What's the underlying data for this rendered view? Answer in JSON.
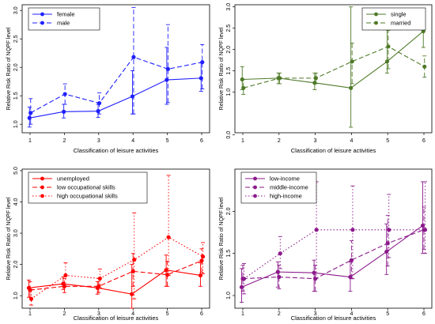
{
  "chart_data": [
    {
      "type": "line",
      "color": "#1f1fff",
      "xlabel": "Classification of leisure activities",
      "ylabel": "Relative Risk Ratio of NQPF level",
      "x": [
        1,
        2,
        3,
        4,
        5,
        6
      ],
      "ylim": [
        0.85,
        3.1
      ],
      "yticks": [
        "1.0",
        "1.5",
        "2.0",
        "2.5",
        "3.0"
      ],
      "ytick_values": [
        1.0,
        1.5,
        2.0,
        2.5,
        3.0
      ],
      "legend_position": "top-left",
      "series": [
        {
          "name": "female",
          "style": "solid",
          "values": [
            1.11,
            1.22,
            1.23,
            1.49,
            1.78,
            1.81
          ],
          "ci_low": [
            0.95,
            1.11,
            1.12,
            1.18,
            1.35,
            1.58
          ],
          "ci_high": [
            1.3,
            1.35,
            1.35,
            1.94,
            2.35,
            2.08
          ]
        },
        {
          "name": "male",
          "style": "dash",
          "values": [
            1.2,
            1.53,
            1.37,
            2.18,
            1.97,
            2.09
          ],
          "ci_low": [
            1.0,
            1.35,
            1.18,
            1.18,
            1.38,
            1.62
          ],
          "ci_high": [
            1.45,
            1.71,
            1.55,
            3.05,
            2.75,
            2.4
          ]
        }
      ]
    },
    {
      "type": "line",
      "color": "#4e7a27",
      "xlabel": "Classification of leisure activities",
      "ylabel": "Relative Risk Ratio of NQPF level",
      "x": [
        1,
        2,
        3,
        4,
        5,
        6
      ],
      "ylim": [
        0.05,
        3.05
      ],
      "yticks": [
        "0.0",
        "1.0",
        "1.5",
        "2.0",
        "2.5",
        "3.0"
      ],
      "ytick_values": [
        0.0,
        1.0,
        1.5,
        2.0,
        2.5,
        3.0
      ],
      "legend_position": "top-right",
      "series": [
        {
          "name": "single",
          "style": "solid",
          "values": [
            1.3,
            1.33,
            1.22,
            1.1,
            1.72,
            2.43
          ],
          "ci_low": [
            1.06,
            1.2,
            1.06,
            0.18,
            1.45,
            2.05
          ],
          "ci_high": [
            1.6,
            1.45,
            1.45,
            3.0,
            2.9,
            2.82
          ]
        },
        {
          "name": "married",
          "style": "dash",
          "values": [
            1.1,
            1.33,
            1.33,
            1.72,
            2.07,
            1.6
          ],
          "ci_low": [
            0.95,
            1.2,
            1.2,
            1.2,
            1.55,
            1.35
          ],
          "ci_high": [
            1.3,
            1.45,
            1.45,
            2.15,
            2.45,
            1.85
          ]
        }
      ]
    },
    {
      "type": "line",
      "color": "#ff0000",
      "xlabel": "Classification of leisure activities",
      "ylabel": "Relative Risk Ratio of NQPF level",
      "x": [
        1,
        2,
        3,
        4,
        5,
        6
      ],
      "ylim": [
        0.6,
        5.05
      ],
      "yticks": [
        "1.0",
        "2.0",
        "3.0",
        "4.0",
        "5.0"
      ],
      "ytick_values": [
        1.0,
        2.0,
        3.0,
        4.0,
        5.0
      ],
      "legend_position": "top-left",
      "series": [
        {
          "name": "unemployed",
          "style": "solid",
          "values": [
            1.25,
            1.38,
            1.25,
            1.05,
            1.82,
            1.65
          ],
          "ci_low": [
            0.95,
            1.2,
            1.05,
            0.6,
            1.3,
            1.3
          ],
          "ci_high": [
            1.5,
            1.6,
            1.45,
            2.0,
            2.3,
            2.05
          ]
        },
        {
          "name": "low occupational skills",
          "style": "dash",
          "values": [
            1.18,
            1.3,
            1.3,
            1.78,
            1.67,
            2.12
          ],
          "ci_low": [
            0.95,
            1.1,
            1.1,
            1.3,
            1.3,
            1.75
          ],
          "ci_high": [
            1.45,
            1.55,
            1.55,
            2.35,
            2.1,
            2.5
          ]
        },
        {
          "name": "high occupational skills",
          "style": "dot",
          "values": [
            0.9,
            1.65,
            1.55,
            2.15,
            2.87,
            2.25
          ],
          "ci_low": [
            0.7,
            1.3,
            1.25,
            0.9,
            1.65,
            1.7
          ],
          "ci_high": [
            1.2,
            2.05,
            1.85,
            3.65,
            4.85,
            2.7
          ]
        }
      ]
    },
    {
      "type": "line",
      "color": "#8b1a8b",
      "xlabel": "Classification of leisure activities",
      "ylabel": "Relative Risk Ratio of NQPF level",
      "x": [
        1,
        2,
        3,
        4,
        5,
        6
      ],
      "ylim": [
        0.85,
        2.5
      ],
      "yticks": [
        "1.0",
        "1.5",
        "2.0"
      ],
      "ytick_values": [
        1.0,
        1.5,
        2.0
      ],
      "legend_position": "top-left",
      "series": [
        {
          "name": "low-income",
          "style": "solid",
          "values": [
            1.1,
            1.28,
            1.27,
            1.22,
            1.52,
            1.83
          ],
          "ci_low": [
            0.92,
            1.1,
            1.05,
            1.05,
            1.25,
            1.5
          ],
          "ci_high": [
            1.32,
            1.4,
            1.42,
            1.4,
            1.85,
            2.35
          ]
        },
        {
          "name": "middle-income",
          "style": "dash",
          "values": [
            1.2,
            1.22,
            1.2,
            1.42,
            1.62,
            1.78
          ],
          "ci_low": [
            1.05,
            1.08,
            1.05,
            1.2,
            1.35,
            1.55
          ],
          "ci_high": [
            1.36,
            1.36,
            1.36,
            1.65,
            1.95,
            2.05
          ]
        },
        {
          "name": "high-income",
          "style": "dot",
          "values": [
            1.2,
            1.5,
            1.78,
            1.78,
            1.78,
            1.78
          ],
          "ci_low": [
            1.02,
            1.32,
            1.2,
            1.2,
            1.45,
            1.5
          ],
          "ci_high": [
            1.38,
            1.7,
            2.35,
            2.3,
            2.2,
            2.35
          ]
        }
      ]
    }
  ]
}
